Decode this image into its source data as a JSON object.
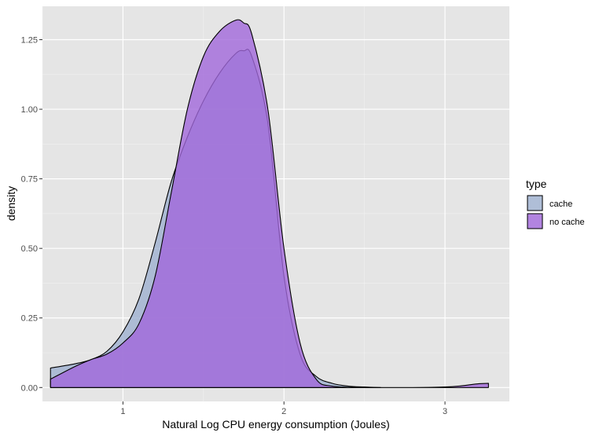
{
  "chart_data": {
    "type": "area",
    "subtype": "density",
    "xlabel": "Natural Log CPU energy consumption (Joules)",
    "ylabel": "density",
    "xlim": [
      0.5,
      3.4
    ],
    "ylim": [
      -0.05,
      1.37
    ],
    "x_ticks": [
      1,
      2,
      3
    ],
    "x_tick_labels": [
      "1",
      "2",
      "3"
    ],
    "y_ticks": [
      0,
      0.25,
      0.5,
      0.75,
      1.0,
      1.25
    ],
    "y_tick_labels": [
      "0.00",
      "0.25",
      "0.50",
      "0.75",
      "1.00",
      "1.25"
    ],
    "grid": true,
    "legend": {
      "title": "type",
      "position": "right"
    },
    "series": [
      {
        "name": "cache",
        "color": "#9db0cf",
        "x": [
          0.55,
          0.7,
          0.8,
          0.9,
          1.0,
          1.1,
          1.2,
          1.3,
          1.4,
          1.5,
          1.6,
          1.7,
          1.75,
          1.8,
          1.9,
          2.0,
          2.1,
          2.2,
          2.3,
          2.4,
          2.5,
          2.6
        ],
        "values": [
          0.07,
          0.085,
          0.1,
          0.13,
          0.2,
          0.32,
          0.52,
          0.74,
          0.9,
          1.03,
          1.13,
          1.2,
          1.21,
          1.19,
          0.95,
          0.4,
          0.12,
          0.04,
          0.015,
          0.005,
          0.002,
          0.0
        ]
      },
      {
        "name": "no cache",
        "color": "#a168db",
        "x": [
          0.55,
          0.7,
          0.8,
          0.9,
          1.0,
          1.1,
          1.2,
          1.3,
          1.4,
          1.5,
          1.6,
          1.7,
          1.75,
          1.8,
          1.9,
          2.0,
          2.1,
          2.2,
          2.3,
          2.5,
          2.8,
          3.0,
          3.1,
          3.2,
          3.27
        ],
        "values": [
          0.03,
          0.075,
          0.1,
          0.12,
          0.16,
          0.23,
          0.4,
          0.7,
          1.0,
          1.19,
          1.28,
          1.32,
          1.31,
          1.27,
          1.0,
          0.5,
          0.16,
          0.03,
          0.005,
          0.0,
          0.0,
          0.002,
          0.006,
          0.013,
          0.015
        ]
      }
    ]
  }
}
